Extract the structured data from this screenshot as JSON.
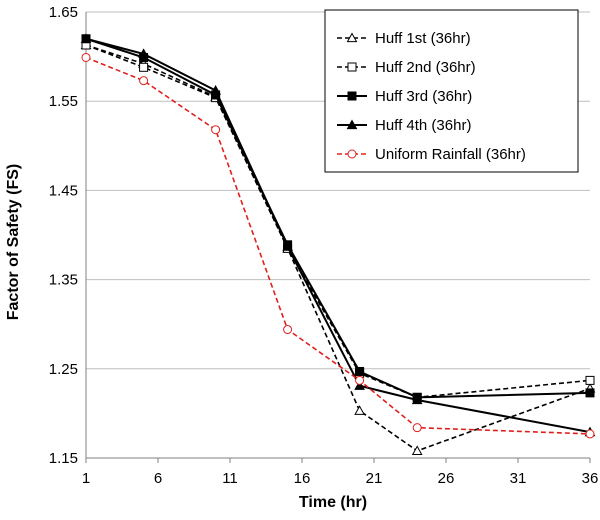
{
  "chart_data": {
    "type": "line",
    "xlabel": "Time (hr)",
    "ylabel": "Factor of Safety (FS)",
    "xlim": [
      1,
      36
    ],
    "ylim": [
      1.15,
      1.65
    ],
    "xticks": [
      1,
      6,
      11,
      16,
      21,
      26,
      31,
      36
    ],
    "yticks": [
      1.15,
      1.25,
      1.35,
      1.45,
      1.55,
      1.65
    ],
    "ytick_labels": [
      "1.15",
      "1.25",
      "1.35",
      "1.45",
      "1.55",
      "1.65"
    ],
    "grid": "horizontal",
    "legend_position": "top-right",
    "series": [
      {
        "name": "Huff 1st (36hr)",
        "color": "#000000",
        "line": "dashed",
        "marker": "triangle-open",
        "x": [
          1,
          5,
          10,
          15,
          20,
          24,
          36
        ],
        "y": [
          1.613,
          1.592,
          1.555,
          1.385,
          1.203,
          1.158,
          1.228
        ]
      },
      {
        "name": "Huff 2nd (36hr)",
        "color": "#000000",
        "line": "dashed",
        "marker": "square-open",
        "x": [
          1,
          5,
          10,
          15,
          20,
          24,
          36
        ],
        "y": [
          1.613,
          1.588,
          1.554,
          1.385,
          1.245,
          1.218,
          1.237
        ]
      },
      {
        "name": "Huff 3rd (36hr)",
        "color": "#000000",
        "line": "solid",
        "marker": "square-filled",
        "x": [
          1,
          5,
          10,
          15,
          20,
          24,
          36
        ],
        "y": [
          1.62,
          1.599,
          1.557,
          1.389,
          1.247,
          1.218,
          1.223
        ]
      },
      {
        "name": "Huff 4th (36hr)",
        "color": "#000000",
        "line": "solid",
        "marker": "triangle-filled",
        "x": [
          1,
          5,
          10,
          15,
          20,
          24,
          36
        ],
        "y": [
          1.62,
          1.603,
          1.562,
          1.387,
          1.231,
          1.215,
          1.179
        ]
      },
      {
        "name": "Uniform Rainfall (36hr)",
        "color": "#e0201e",
        "line": "dashed",
        "marker": "circle-open",
        "x": [
          1,
          5,
          10,
          15,
          20,
          24,
          36
        ],
        "y": [
          1.599,
          1.573,
          1.518,
          1.294,
          1.237,
          1.184,
          1.177
        ]
      }
    ]
  }
}
